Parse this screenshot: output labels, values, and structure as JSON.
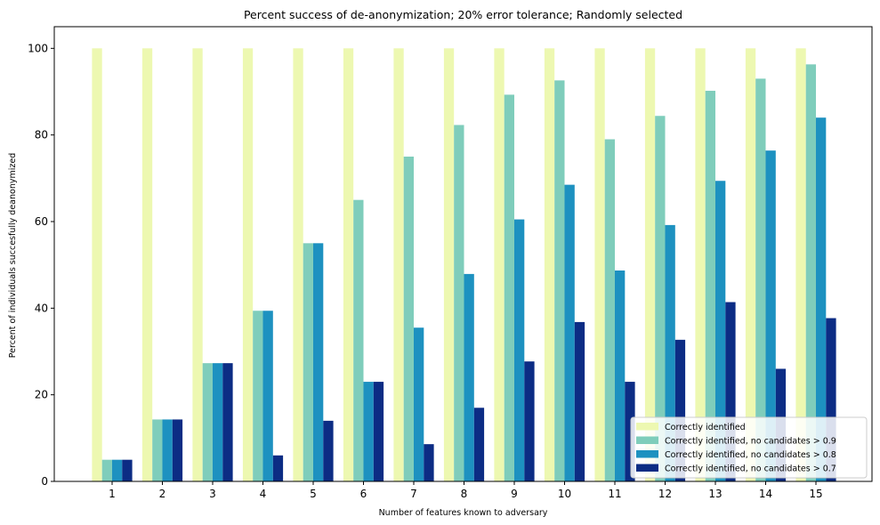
{
  "chart_data": {
    "type": "bar",
    "title": "Percent success of de-anonymization; 20% error tolerance; Randomly selected",
    "xlabel": "Number of features known to adversary",
    "ylabel": "Percent of individuals succesfully deanonymized",
    "categories": [
      "1",
      "2",
      "3",
      "4",
      "5",
      "6",
      "7",
      "8",
      "9",
      "10",
      "11",
      "12",
      "13",
      "14",
      "15"
    ],
    "ylim": [
      0,
      105
    ],
    "yticks": [
      0,
      20,
      40,
      60,
      80,
      100
    ],
    "grid": false,
    "legend_position": "bottom-right",
    "series": [
      {
        "name": "Correctly identified",
        "color": "#edf8b1",
        "values": [
          100,
          100,
          100,
          100,
          100,
          100,
          100,
          100,
          100,
          100,
          100,
          100,
          100,
          100,
          100
        ]
      },
      {
        "name": "Correctly identified, no candidates > 0.9",
        "color": "#7fcdbb",
        "values": [
          5,
          14.3,
          27.3,
          39.4,
          55,
          65,
          75,
          82.3,
          89.3,
          92.6,
          79,
          84.4,
          90.2,
          93,
          96.3
        ]
      },
      {
        "name": "Correctly identified, no candidates > 0.8",
        "color": "#1d91c0",
        "values": [
          5,
          14.3,
          27.3,
          39.4,
          55,
          23,
          35.5,
          47.9,
          60.5,
          68.5,
          48.7,
          59.2,
          69.4,
          76.4,
          84
        ]
      },
      {
        "name": "Correctly identified, no candidates > 0.7",
        "color": "#0c2c84",
        "values": [
          5,
          14.3,
          27.3,
          6,
          14,
          23,
          8.6,
          17,
          27.7,
          36.8,
          23,
          32.7,
          41.4,
          26,
          37.7
        ]
      }
    ]
  }
}
